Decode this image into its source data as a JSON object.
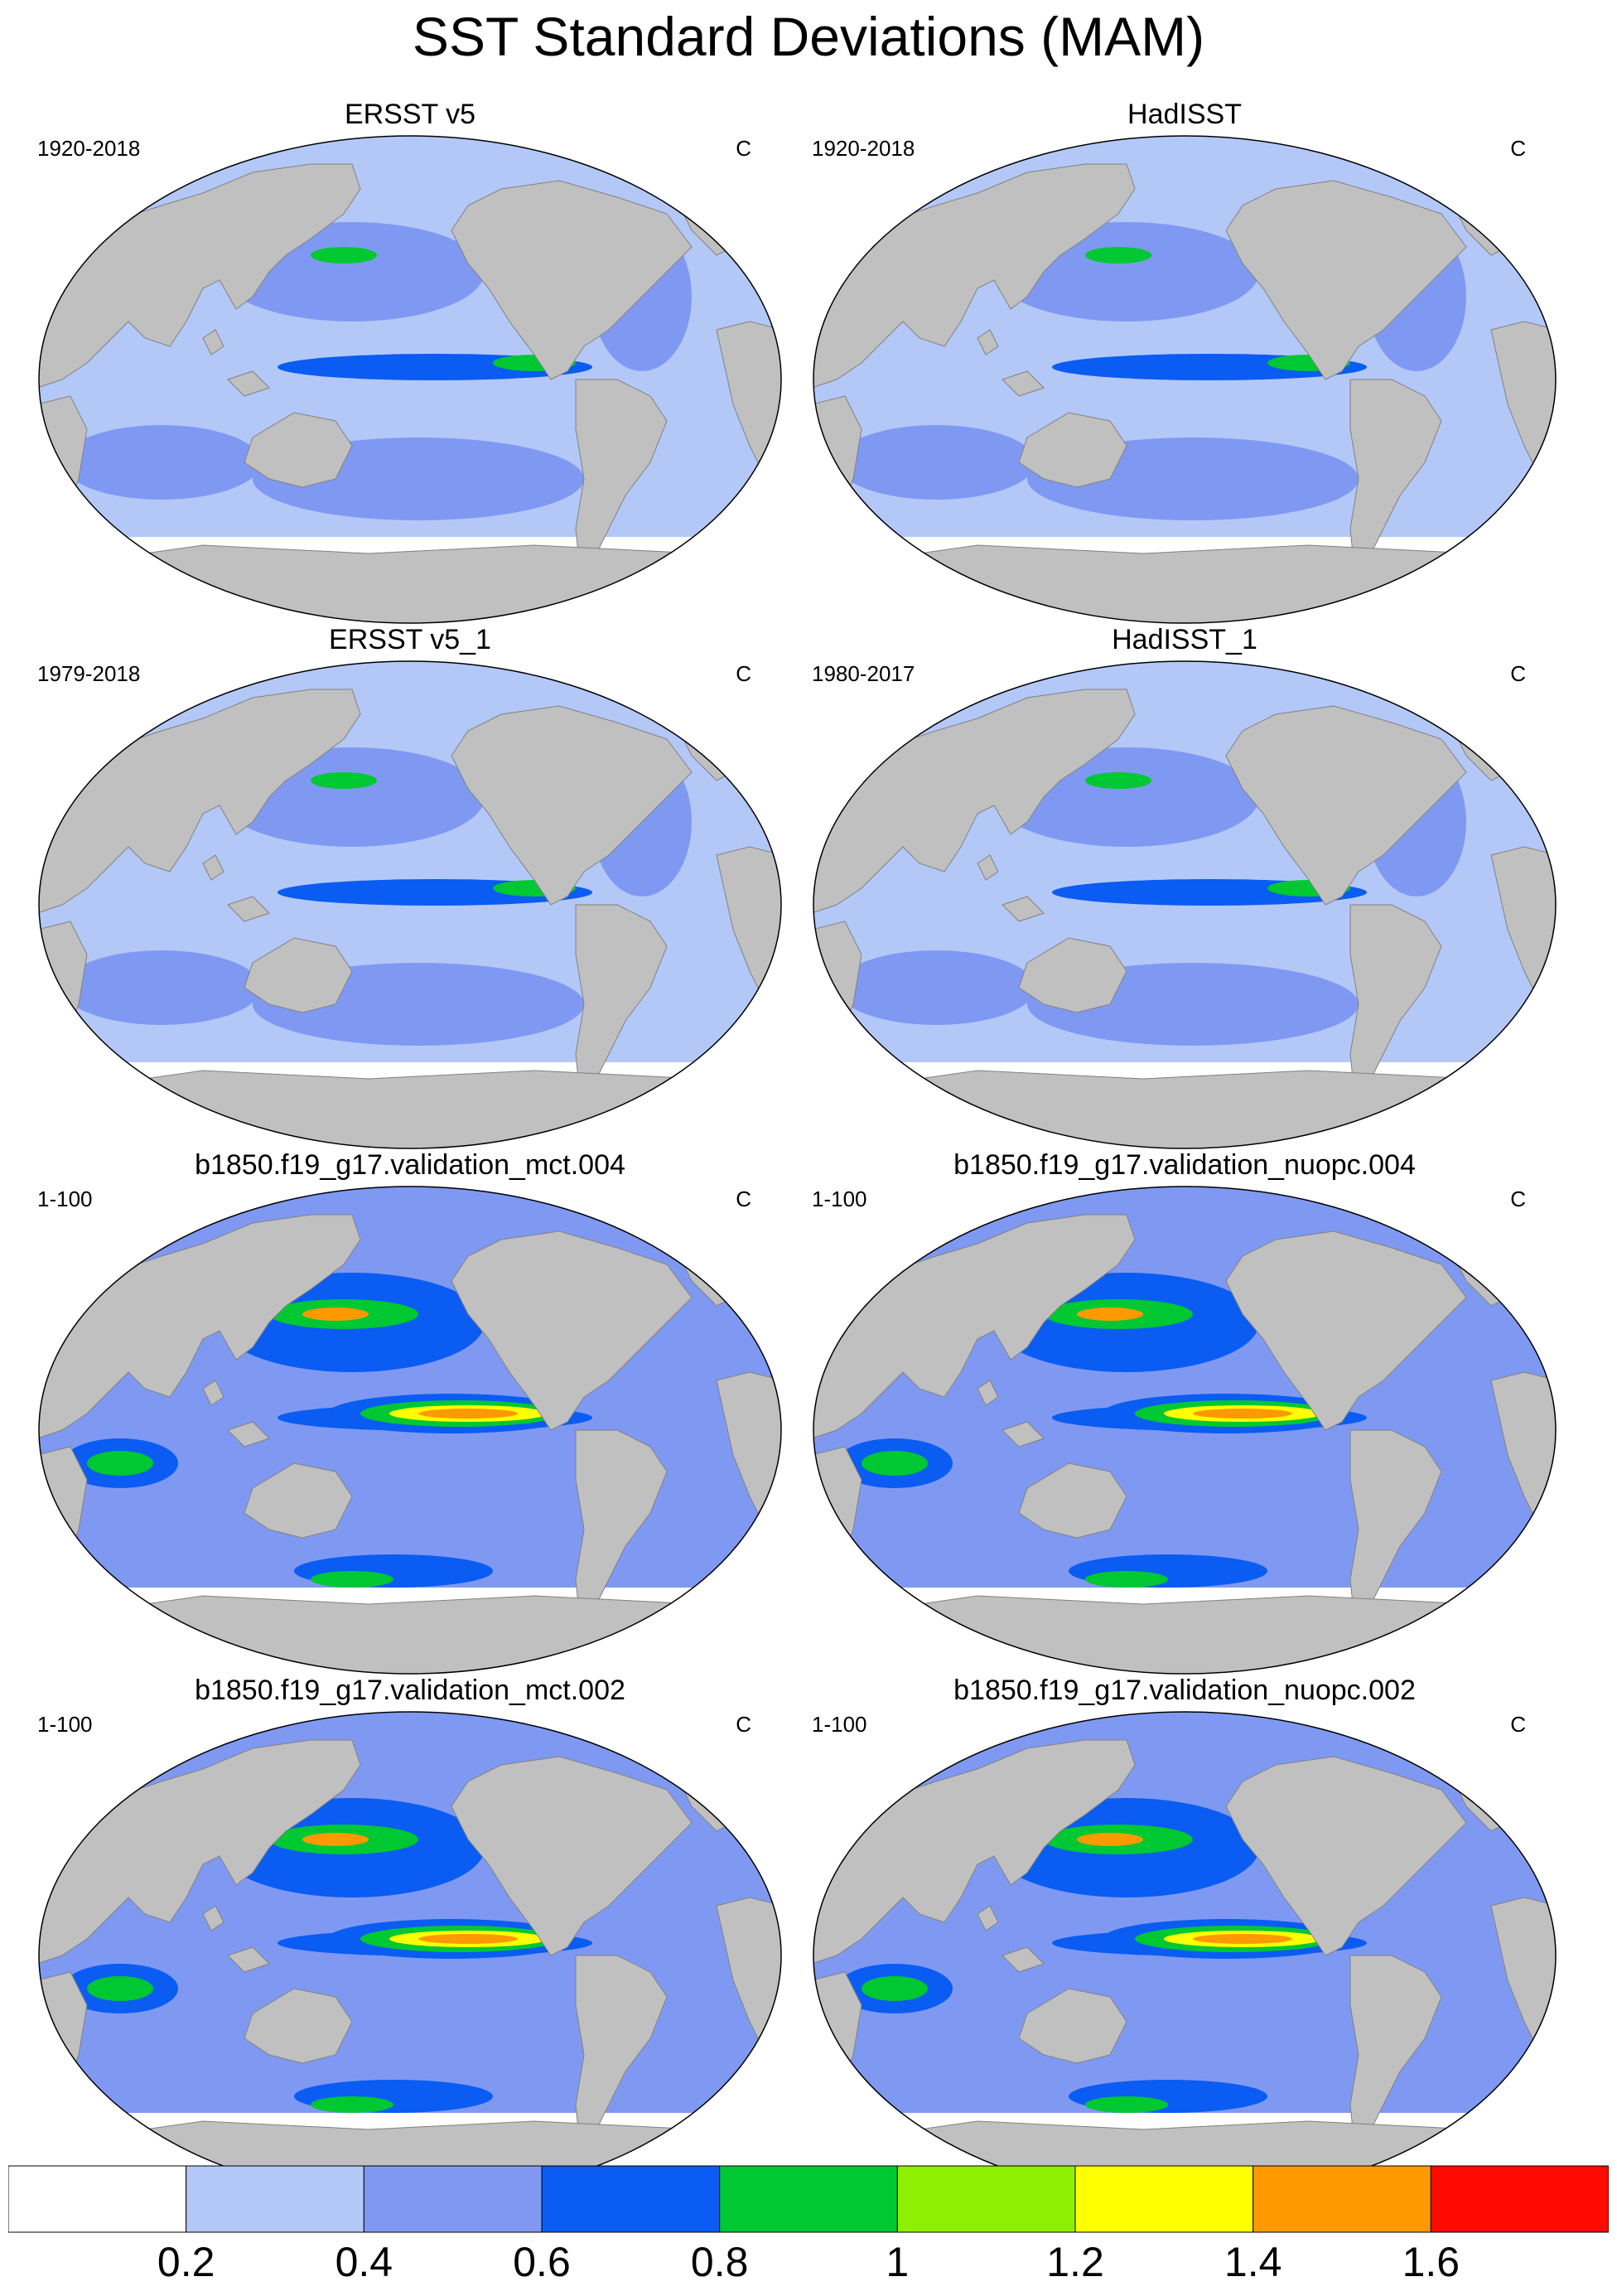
{
  "title": "SST Standard Deviations (MAM)",
  "units": "C",
  "colors": {
    "land": "#c0c0c0",
    "ocean_levels": [
      "#ffffff",
      "#b4c8f8",
      "#7f99f2",
      "#0a5cf2",
      "#00c832",
      "#8cf000",
      "#ffff00",
      "#ff9900",
      "#ff0a00"
    ]
  },
  "panels": [
    {
      "title": "ERSST v5",
      "period": "1920-2018",
      "units": "C",
      "variant": "obs"
    },
    {
      "title": "HadISST",
      "period": "1920-2018",
      "units": "C",
      "variant": "obs"
    },
    {
      "title": "ERSST v5_1",
      "period": "1979-2018",
      "units": "C",
      "variant": "obs"
    },
    {
      "title": "HadISST_1",
      "period": "1980-2017",
      "units": "C",
      "variant": "obs"
    },
    {
      "title": "b1850.f19_g17.validation_mct.004",
      "period": "1-100",
      "units": "C",
      "variant": "model"
    },
    {
      "title": "b1850.f19_g17.validation_nuopc.004",
      "period": "1-100",
      "units": "C",
      "variant": "model"
    },
    {
      "title": "b1850.f19_g17.validation_mct.002",
      "period": "1-100",
      "units": "C",
      "variant": "model"
    },
    {
      "title": "b1850.f19_g17.validation_nuopc.002",
      "period": "1-100",
      "units": "C",
      "variant": "model"
    }
  ],
  "colorbar": {
    "labels": [
      "0.2",
      "0.4",
      "0.6",
      "0.8",
      "1",
      "1.2",
      "1.4",
      "1.6"
    ],
    "colors": [
      "#ffffff",
      "#b4c8f8",
      "#7f99f2",
      "#0a5cf2",
      "#00c832",
      "#8cf000",
      "#ffff00",
      "#ff9900",
      "#ff0a00"
    ]
  }
}
